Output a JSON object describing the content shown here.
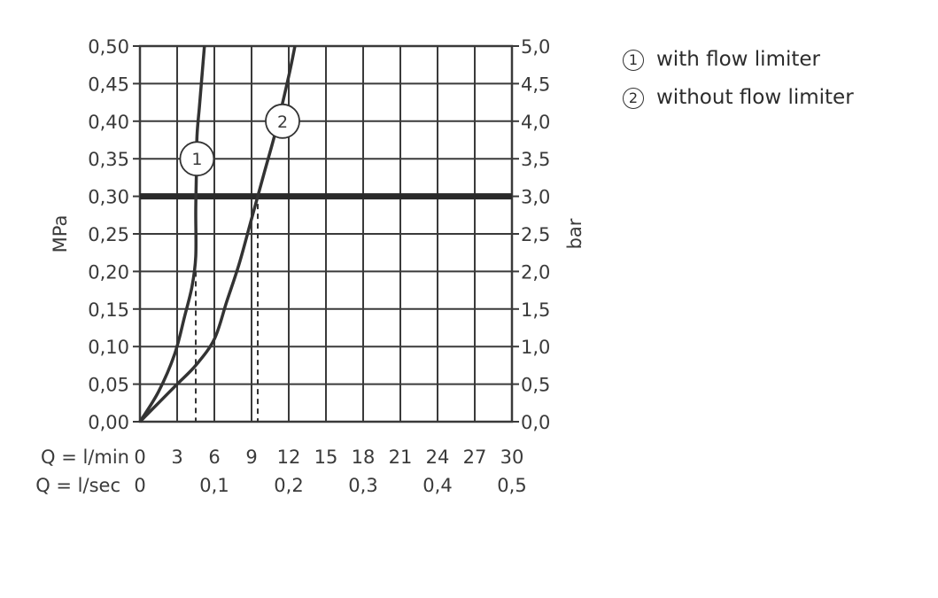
{
  "chart_data": {
    "type": "line",
    "ylabel_left": "MPa",
    "ylabel_right": "bar",
    "y_ticks_left": [
      "0,00",
      "0,05",
      "0,10",
      "0,15",
      "0,20",
      "0,25",
      "0,30",
      "0,35",
      "0,40",
      "0,45",
      "0,50"
    ],
    "y_ticks_right": [
      "0,0",
      "0,5",
      "1,0",
      "1,5",
      "2,0",
      "2,5",
      "3,0",
      "3,5",
      "4,0",
      "4,5",
      "5,0"
    ],
    "ylim": [
      0,
      0.5
    ],
    "xlim": [
      0,
      30
    ],
    "x_axis_label_lmin": "Q = l/min",
    "x_ticks_lmin": [
      "0",
      "3",
      "6",
      "9",
      "12",
      "15",
      "18",
      "21",
      "24",
      "27",
      "30"
    ],
    "x_axis_label_lsec": "Q = l/sec",
    "x_ticks_lsec": [
      "0",
      "0,1",
      "0,2",
      "0,3",
      "0,4",
      "0,5"
    ],
    "x_ticks_lsec_values": [
      0,
      6,
      12,
      18,
      24,
      30
    ],
    "grid": true,
    "reference_line_y": 0.3,
    "dashed_markers": [
      {
        "x": 4.5,
        "y_top": 0.2
      },
      {
        "x": 9.5,
        "y_top": 0.29
      }
    ],
    "series": [
      {
        "name": "with flow limiter",
        "marker": "1",
        "marker_at": {
          "x": 4.6,
          "y": 0.35
        },
        "x": [
          0,
          1.5,
          2.8,
          3.6,
          4.2,
          4.5,
          4.5,
          4.55,
          4.6,
          4.8,
          5.0,
          5.2
        ],
        "y": [
          0,
          0.04,
          0.09,
          0.14,
          0.18,
          0.22,
          0.28,
          0.33,
          0.38,
          0.42,
          0.46,
          0.5
        ]
      },
      {
        "name": "without flow limiter",
        "marker": "2",
        "marker_at": {
          "x": 11.5,
          "y": 0.4
        },
        "x": [
          0,
          1.5,
          3,
          4.5,
          6,
          7,
          8,
          9,
          10,
          11,
          12,
          12.5
        ],
        "y": [
          0,
          0.025,
          0.05,
          0.075,
          0.11,
          0.16,
          0.21,
          0.27,
          0.33,
          0.39,
          0.46,
          0.5
        ]
      }
    ]
  },
  "legend": [
    {
      "marker": "1",
      "label": "with flow limiter"
    },
    {
      "marker": "2",
      "label": "without flow limiter"
    }
  ]
}
